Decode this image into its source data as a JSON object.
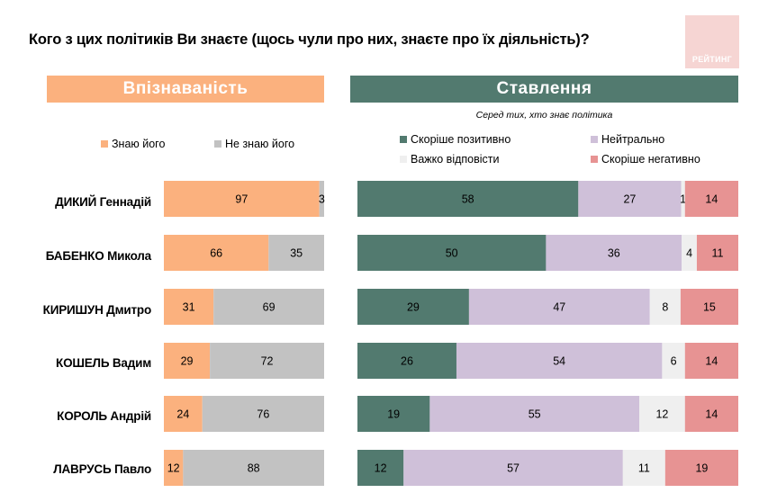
{
  "title": "Кого з цих політиків Ви знаєте (щось чули про них, знаєте про їх діяльність)?",
  "logo": {
    "text": "РЕЙТИНГ"
  },
  "headers": {
    "recognition": "Впізнаваність",
    "attitude": "Ставлення"
  },
  "subtitle": "Серед тих, хто знає політика",
  "colors": {
    "know": "#fbb17e",
    "dont_know": "#c2c2c2",
    "positive": "#527a6f",
    "neutral": "#cfc0d9",
    "hard_to_say": "#efefef",
    "negative": "#e79393"
  },
  "chart_data": [
    {
      "type": "bar",
      "orientation": "horizontal",
      "stacked": true,
      "title": "Впізнаваність",
      "categories": [
        "ДИКИЙ Геннадій",
        "БАБЕНКО Микола",
        "КИРИШУН Дмитро",
        "КОШЕЛЬ Вадим",
        "КОРОЛЬ Андрій",
        "ЛАВРУСЬ Павло"
      ],
      "series": [
        {
          "name": "Знаю його",
          "values": [
            97,
            66,
            31,
            29,
            24,
            12
          ]
        },
        {
          "name": "Не знаю його",
          "values": [
            3,
            35,
            69,
            72,
            76,
            88
          ]
        }
      ],
      "legend": "top"
    },
    {
      "type": "bar",
      "orientation": "horizontal",
      "stacked": true,
      "title": "Ставлення",
      "subtitle": "Серед тих, хто знає політика",
      "categories": [
        "ДИКИЙ Геннадій",
        "БАБЕНКО Микола",
        "КИРИШУН Дмитро",
        "КОШЕЛЬ Вадим",
        "КОРОЛЬ Андрій",
        "ЛАВРУСЬ Павло"
      ],
      "series": [
        {
          "name": "Скоріше позитивно",
          "values": [
            58,
            50,
            29,
            26,
            19,
            12
          ]
        },
        {
          "name": "Нейтрально",
          "values": [
            27,
            36,
            47,
            54,
            55,
            57
          ]
        },
        {
          "name": "Важко відповісти",
          "values": [
            1,
            4,
            8,
            6,
            12,
            11
          ]
        },
        {
          "name": "Скоріше негативно",
          "values": [
            14,
            11,
            15,
            14,
            14,
            19
          ]
        }
      ],
      "legend": "top"
    }
  ]
}
